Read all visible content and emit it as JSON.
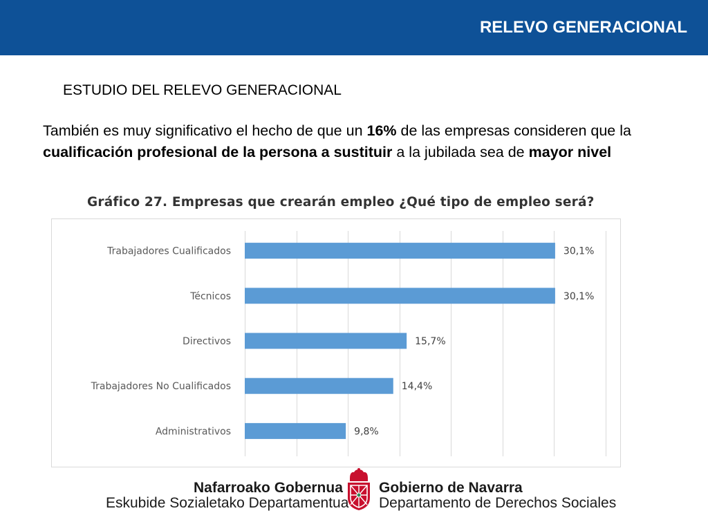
{
  "header": {
    "title": "RELEVO GENERACIONAL",
    "bar_color": "#0e5197"
  },
  "subtitle": "ESTUDIO DEL RELEVO GENERACIONAL",
  "body": {
    "p1": "También es muy significativo el hecho de que un ",
    "b1": "16%",
    "p2": " de las empresas consideren que la ",
    "b2": "cualificación profesional de la persona a sustituir",
    "p3": " a la jubilada sea de ",
    "b3": "mayor nivel"
  },
  "chart_data": {
    "type": "bar",
    "orientation": "horizontal",
    "title": "Gráfico 27. Empresas que crearán empleo ¿Qué tipo de empleo será?",
    "categories": [
      "Trabajadores Cualificados",
      "Técnicos",
      "Directivos",
      "Trabajadores No Cualificados",
      "Administrativos"
    ],
    "values": [
      30.1,
      30.1,
      15.7,
      14.4,
      9.8
    ],
    "data_labels": [
      "30,1%",
      "30,1%",
      "15,7%",
      "14,4%",
      "9,8%"
    ],
    "xlim": [
      0,
      35
    ],
    "grid": true,
    "legend": "none",
    "bar_color": "#5b9bd5"
  },
  "footer": {
    "left_bold": "Nafarroako Gobernua",
    "left_regular": "Eskubide Sozialetako Departamentua",
    "right_bold": "Gobierno de Navarra",
    "right_regular": "Departamento de Derechos Sociales",
    "emblem_icon": "navarra-coat-of-arms-icon",
    "emblem_color": "#c8102e"
  }
}
